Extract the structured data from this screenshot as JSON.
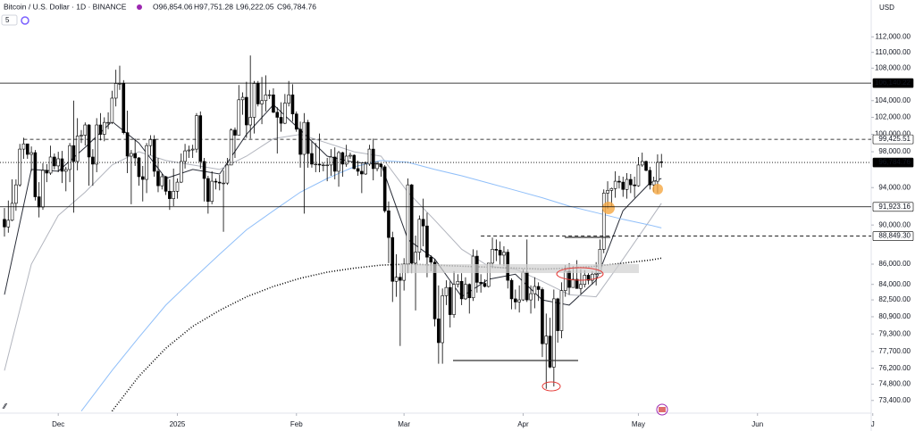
{
  "header": {
    "name": "Bitcoin / U.S. Dollar · 1D · BINANCE",
    "ohlc_labels": [
      "O96,854.06",
      "H97,751.28",
      "L96,222.05",
      "C96,784.76"
    ],
    "indicators": "5",
    "currency": "USD"
  },
  "chart_data": {
    "type": "candlestick",
    "log_scale": true,
    "grid": false,
    "up_color": "#ffffff",
    "down_color": "#000000",
    "edge_color": "#000000",
    "ylim": [
      72400,
      116900
    ],
    "yticks": [
      {
        "value": 112000,
        "label": "112,000.00"
      },
      {
        "value": 110000,
        "label": "110,000.00"
      },
      {
        "value": 108000,
        "label": "108,000.00"
      },
      {
        "value": 104000,
        "label": "104,000.00"
      },
      {
        "value": 102000,
        "label": "102,000.00"
      },
      {
        "value": 100000,
        "label": "100,000.00"
      },
      {
        "value": 98000,
        "label": "98,000.00"
      },
      {
        "value": 94000,
        "label": "94,000.00"
      },
      {
        "value": 90000,
        "label": "90,000.00"
      },
      {
        "value": 86000,
        "label": "86,000.00"
      },
      {
        "value": 84000,
        "label": "84,000.00"
      },
      {
        "value": 82500,
        "label": "82,500.00"
      },
      {
        "value": 80900,
        "label": "80,900.00"
      },
      {
        "value": 79300,
        "label": "79,300.00"
      },
      {
        "value": 77700,
        "label": "77,700.00"
      },
      {
        "value": 76200,
        "label": "76,200.00"
      },
      {
        "value": 74800,
        "label": "74,800.00"
      },
      {
        "value": 73400,
        "label": "73,400.00"
      }
    ],
    "xlim": [
      -1.16,
      225.6
    ],
    "xticks": [
      {
        "value": 14,
        "label": "Dec"
      },
      {
        "value": 45,
        "label": "2025"
      },
      {
        "value": 76,
        "label": "Feb"
      },
      {
        "value": 104,
        "label": "Mar"
      },
      {
        "value": 135,
        "label": "Apr"
      },
      {
        "value": 165,
        "label": "May"
      },
      {
        "value": 196,
        "label": "Jun"
      },
      {
        "value": 226,
        "label": "J"
      }
    ],
    "levels": [
      {
        "value": 106140.22,
        "label": "106,140.22",
        "style": "solid",
        "fill": "#000000",
        "x_start": -1.16
      },
      {
        "value": 99425.51,
        "label": "99,425.51",
        "style": "dashed",
        "fill": "#ffffff",
        "x_start": 5
      },
      {
        "value": 96784.76,
        "label": "96,784.76",
        "style": "dotted",
        "fill": "#000000",
        "x_start": -1.16
      },
      {
        "value": 91923.16,
        "label": "91,923.16",
        "style": "solid",
        "fill": "#ffffff",
        "x_start": -1.16
      },
      {
        "value": 88849.3,
        "label": "88,849.30",
        "style": "dashed",
        "fill": "#ffffff",
        "x_start": 124
      }
    ],
    "series": [
      {
        "color": "#2a2e39",
        "style": "solid",
        "x": [
          0,
          7,
          14,
          21,
          28,
          35,
          42,
          49,
          56,
          63,
          70,
          77,
          84,
          91,
          98,
          105,
          112,
          119,
          126,
          133,
          140,
          147,
          154,
          161,
          168,
          171
        ],
        "values": [
          83000,
          96000,
          95800,
          98500,
          101500,
          99000,
          95000,
          96000,
          95500,
          100000,
          103500,
          100500,
          97500,
          96800,
          96600,
          88500,
          86500,
          82800,
          84500,
          85000,
          82500,
          82000,
          84400,
          91500,
          94500,
          95000
        ]
      },
      {
        "color": "#b2b5be",
        "style": "solid",
        "x": [
          0,
          7,
          14,
          21,
          28,
          35,
          42,
          49,
          56,
          63,
          70,
          77,
          84,
          91,
          98,
          105,
          112,
          119,
          126,
          133,
          140,
          147,
          154,
          161,
          168,
          171
        ],
        "values": [
          76000,
          86000,
          91000,
          93500,
          96500,
          98000,
          97000,
          96500,
          96000,
          97500,
          99500,
          100000,
          99000,
          98000,
          97500,
          93500,
          90500,
          87500,
          85800,
          85500,
          84300,
          83000,
          82800,
          86500,
          90500,
          92300
        ]
      },
      {
        "color": "#90bff9",
        "style": "solid",
        "x": [
          20,
          28,
          35,
          42,
          49,
          56,
          63,
          70,
          77,
          84,
          91,
          98,
          105,
          112,
          119,
          126,
          133,
          140,
          147,
          154,
          161,
          168,
          171
        ],
        "values": [
          72500,
          76000,
          79000,
          82000,
          84500,
          87000,
          89500,
          91500,
          93500,
          95000,
          96300,
          97000,
          96800,
          96000,
          95300,
          94500,
          93700,
          92900,
          92000,
          91300,
          90600,
          90000,
          89700
        ]
      },
      {
        "color": "#000000",
        "style": "dotted",
        "x": [
          28,
          35,
          42,
          49,
          56,
          63,
          70,
          77,
          84,
          91,
          98,
          105,
          112,
          119,
          126,
          133,
          140,
          147,
          154,
          161,
          168,
          171
        ],
        "values": [
          72500,
          75500,
          78000,
          80000,
          81500,
          82800,
          83800,
          84600,
          85200,
          85600,
          85900,
          86000,
          85900,
          85800,
          85700,
          85600,
          85500,
          85600,
          85800,
          86100,
          86400,
          86600
        ]
      }
    ],
    "ohlc": [
      [
        90600,
        91800,
        88800,
        89800
      ],
      [
        89800,
        92600,
        89200,
        90500
      ],
      [
        90500,
        94900,
        90400,
        92300
      ],
      [
        92300,
        94900,
        91500,
        94300
      ],
      [
        94300,
        98900,
        94100,
        98300
      ],
      [
        98300,
        99600,
        97200,
        98900
      ],
      [
        98900,
        98900,
        97200,
        97700
      ],
      [
        97700,
        98600,
        95800,
        97900
      ],
      [
        97900,
        98200,
        92600,
        93000
      ],
      [
        93000,
        94600,
        90800,
        91900
      ],
      [
        91900,
        96700,
        91600,
        95900
      ],
      [
        95900,
        96600,
        94600,
        95600
      ],
      [
        95600,
        98700,
        95400,
        97400
      ],
      [
        97400,
        97800,
        96000,
        96400
      ],
      [
        96400,
        98000,
        95700,
        97200
      ],
      [
        97200,
        98100,
        94500,
        95800
      ],
      [
        95800,
        96300,
        93600,
        96000
      ],
      [
        96000,
        99000,
        94600,
        98700
      ],
      [
        98700,
        104000,
        91300,
        96900
      ],
      [
        96900,
        101900,
        95900,
        99800
      ],
      [
        99800,
        100500,
        99000,
        99900
      ],
      [
        99900,
        101400,
        98700,
        101100
      ],
      [
        101100,
        101200,
        94200,
        97400
      ],
      [
        97400,
        98300,
        94200,
        96600
      ],
      [
        96600,
        101900,
        95700,
        101100
      ],
      [
        101100,
        102500,
        99300,
        100000
      ],
      [
        100000,
        102000,
        99200,
        101400
      ],
      [
        101400,
        102600,
        100600,
        101400
      ],
      [
        101400,
        105200,
        101200,
        104300
      ],
      [
        104300,
        107800,
        103300,
        106100
      ],
      [
        106100,
        108300,
        105300,
        106100
      ],
      [
        106100,
        106500,
        100000,
        100200
      ],
      [
        100200,
        102800,
        95600,
        97500
      ],
      [
        97500,
        98200,
        92200,
        97800
      ],
      [
        97800,
        99500,
        96400,
        97300
      ],
      [
        97300,
        97400,
        94200,
        95200
      ],
      [
        95200,
        96400,
        92500,
        94900
      ],
      [
        94900,
        99000,
        93400,
        98700
      ],
      [
        98700,
        99900,
        97600,
        99400
      ],
      [
        99400,
        99900,
        95200,
        95800
      ],
      [
        95800,
        97300,
        93500,
        94200
      ],
      [
        94200,
        95500,
        93800,
        95200
      ],
      [
        95200,
        95300,
        93200,
        93600
      ],
      [
        93600,
        94900,
        91600,
        92800
      ],
      [
        92800,
        96100,
        92000,
        93600
      ],
      [
        93600,
        95000,
        92800,
        94600
      ],
      [
        94600,
        97800,
        94500,
        96900
      ],
      [
        96900,
        98900,
        96100,
        98100
      ],
      [
        98100,
        98700,
        97300,
        98200
      ],
      [
        98200,
        98800,
        97300,
        98300
      ],
      [
        98300,
        102500,
        97900,
        102200
      ],
      [
        102200,
        102700,
        96100,
        96900
      ],
      [
        96900,
        97300,
        92500,
        95000
      ],
      [
        95000,
        95300,
        91200,
        92500
      ],
      [
        92500,
        95800,
        92200,
        94700
      ],
      [
        94700,
        95000,
        93800,
        94600
      ],
      [
        94600,
        95400,
        93700,
        94500
      ],
      [
        94500,
        95900,
        89300,
        94500
      ],
      [
        94500,
        97300,
        94300,
        96500
      ],
      [
        96500,
        100700,
        96500,
        100500
      ],
      [
        100500,
        100800,
        97300,
        99900
      ],
      [
        99900,
        105900,
        99900,
        104100
      ],
      [
        104100,
        105000,
        102300,
        104400
      ],
      [
        104400,
        106300,
        99600,
        101100
      ],
      [
        101100,
        109600,
        99500,
        102000
      ],
      [
        102000,
        106400,
        100100,
        106100
      ],
      [
        106100,
        106400,
        103300,
        103600
      ],
      [
        103600,
        106900,
        101200,
        104000
      ],
      [
        104000,
        107100,
        102700,
        104700
      ],
      [
        104700,
        105300,
        104200,
        104700
      ],
      [
        104700,
        105500,
        102500,
        102600
      ],
      [
        102600,
        103200,
        97800,
        102000
      ],
      [
        102000,
        103800,
        100300,
        101300
      ],
      [
        101300,
        104800,
        101200,
        103700
      ],
      [
        103700,
        106400,
        103300,
        104700
      ],
      [
        104700,
        106000,
        101500,
        102400
      ],
      [
        102400,
        102700,
        100300,
        100600
      ],
      [
        100600,
        101500,
        96200,
        97700
      ],
      [
        97700,
        102500,
        91200,
        101400
      ],
      [
        101400,
        101700,
        96200,
        97800
      ],
      [
        97800,
        99200,
        96200,
        96600
      ],
      [
        96600,
        99000,
        95700,
        96600
      ],
      [
        96600,
        100100,
        95700,
        96500
      ],
      [
        96500,
        96800,
        95800,
        96500
      ],
      [
        96500,
        97300,
        94700,
        96500
      ],
      [
        96500,
        98300,
        95300,
        97400
      ],
      [
        97400,
        98500,
        94900,
        95800
      ],
      [
        95800,
        98100,
        94100,
        97900
      ],
      [
        97900,
        98000,
        95200,
        96600
      ],
      [
        96600,
        98800,
        96300,
        97500
      ],
      [
        97500,
        97900,
        97200,
        97600
      ],
      [
        97600,
        97700,
        96000,
        96100
      ],
      [
        96100,
        97000,
        95300,
        95800
      ],
      [
        95800,
        96700,
        93400,
        95500
      ],
      [
        95500,
        96900,
        95400,
        96600
      ],
      [
        96600,
        98800,
        96400,
        98300
      ],
      [
        98300,
        99500,
        94800,
        96100
      ],
      [
        96100,
        96900,
        95800,
        96600
      ],
      [
        96600,
        96700,
        95200,
        96300
      ],
      [
        96300,
        96500,
        91300,
        91500
      ],
      [
        91500,
        92500,
        86100,
        88700
      ],
      [
        88700,
        89300,
        82300,
        84300
      ],
      [
        84300,
        87000,
        82800,
        84700
      ],
      [
        84700,
        85100,
        78200,
        84400
      ],
      [
        84400,
        86600,
        83400,
        86000
      ],
      [
        86000,
        95000,
        85100,
        94300
      ],
      [
        94300,
        94400,
        85100,
        86100
      ],
      [
        86100,
        88900,
        81500,
        87200
      ],
      [
        87200,
        91000,
        86400,
        90600
      ],
      [
        90600,
        92800,
        87800,
        89900
      ],
      [
        89900,
        91300,
        84700,
        86700
      ],
      [
        86700,
        86900,
        85300,
        86200
      ],
      [
        86200,
        86500,
        80000,
        80700
      ],
      [
        80700,
        83900,
        76600,
        78500
      ],
      [
        78500,
        83600,
        76600,
        82900
      ],
      [
        82900,
        84400,
        82000,
        83700
      ],
      [
        83700,
        84300,
        79900,
        81100
      ],
      [
        81100,
        85300,
        80800,
        84000
      ],
      [
        84000,
        85000,
        83700,
        84300
      ],
      [
        84300,
        85100,
        82000,
        82600
      ],
      [
        82600,
        84700,
        82500,
        84000
      ],
      [
        84000,
        84100,
        81200,
        82700
      ],
      [
        82700,
        87500,
        82400,
        86800
      ],
      [
        86800,
        87400,
        83200,
        84200
      ],
      [
        84200,
        85000,
        83200,
        84100
      ],
      [
        84100,
        84500,
        83700,
        83800
      ],
      [
        83800,
        86100,
        83700,
        86100
      ],
      [
        86100,
        88700,
        85600,
        87500
      ],
      [
        87500,
        88500,
        86300,
        87400
      ],
      [
        87400,
        88300,
        85900,
        86900
      ],
      [
        86900,
        87800,
        85800,
        87200
      ],
      [
        87200,
        87500,
        83600,
        84400
      ],
      [
        84400,
        84600,
        81600,
        82600
      ],
      [
        82600,
        83500,
        81600,
        82300
      ],
      [
        82300,
        83900,
        81300,
        82500
      ],
      [
        82500,
        85500,
        82400,
        85200
      ],
      [
        85200,
        88500,
        82300,
        82500
      ],
      [
        82500,
        83900,
        81200,
        83100
      ],
      [
        83100,
        84700,
        81700,
        83800
      ],
      [
        83800,
        84200,
        82400,
        83500
      ],
      [
        83500,
        83700,
        77200,
        78400
      ],
      [
        78400,
        81200,
        74400,
        79100
      ],
      [
        79100,
        80800,
        76200,
        76300
      ],
      [
        76300,
        83500,
        74600,
        82600
      ],
      [
        82600,
        82700,
        78500,
        79600
      ],
      [
        79600,
        84200,
        78900,
        83400
      ],
      [
        83400,
        85900,
        82800,
        85300
      ],
      [
        85300,
        86100,
        83000,
        83700
      ],
      [
        83700,
        85800,
        83700,
        84500
      ],
      [
        84500,
        86400,
        83600,
        83600
      ],
      [
        83600,
        85500,
        83100,
        84000
      ],
      [
        84000,
        85400,
        83700,
        84900
      ],
      [
        84900,
        85100,
        84000,
        84400
      ],
      [
        84400,
        85300,
        84000,
        85000
      ],
      [
        85000,
        86200,
        83900,
        85100
      ],
      [
        85100,
        88500,
        85100,
        87500
      ],
      [
        87500,
        93800,
        87100,
        93400
      ],
      [
        93400,
        94700,
        91700,
        93700
      ],
      [
        93700,
        94000,
        92000,
        93900
      ],
      [
        93900,
        95800,
        92900,
        94700
      ],
      [
        94700,
        95300,
        93900,
        94600
      ],
      [
        94600,
        95200,
        93000,
        93800
      ],
      [
        93800,
        95600,
        92800,
        94900
      ],
      [
        94900,
        95500,
        93400,
        94300
      ],
      [
        94300,
        95200,
        92900,
        94200
      ],
      [
        94200,
        97400,
        94100,
        96500
      ],
      [
        96500,
        97900,
        96300,
        96900
      ],
      [
        96900,
        97000,
        95800,
        95900
      ],
      [
        95900,
        96300,
        93800,
        94300
      ],
      [
        94300,
        95200,
        93500,
        94700
      ],
      [
        94700,
        97700,
        93400,
        96800
      ],
      [
        96854.06,
        97751.28,
        96222.05,
        96784.76
      ]
    ]
  }
}
